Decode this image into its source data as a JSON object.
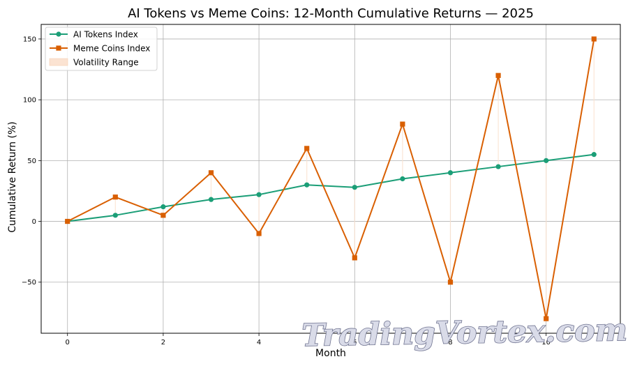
{
  "chart_data": {
    "type": "line",
    "title": "AI Tokens vs Meme Coins: 12-Month Cumulative Returns — 2025",
    "xlabel": "Month",
    "ylabel": "Cumulative Return (%)",
    "x": [
      0,
      1,
      2,
      3,
      4,
      5,
      6,
      7,
      8,
      9,
      10,
      11
    ],
    "xlim": [
      -0.55,
      11.55
    ],
    "ylim": [
      -92,
      162
    ],
    "xticks": [
      0,
      2,
      4,
      6,
      8,
      10
    ],
    "yticks": [
      -50,
      0,
      50,
      100,
      150
    ],
    "ytick_labels": [
      "−50",
      "0",
      "50",
      "100",
      "150"
    ],
    "grid": true,
    "legend_position": "upper-left",
    "series": [
      {
        "name": "AI Tokens Index",
        "color": "#1b9e77",
        "marker": "circle",
        "values": [
          0,
          5,
          12,
          18,
          22,
          30,
          28,
          35,
          40,
          45,
          50,
          55
        ]
      },
      {
        "name": "Meme Coins Index",
        "color": "#d95f02",
        "marker": "square",
        "values": [
          0,
          20,
          5,
          40,
          -10,
          60,
          -30,
          80,
          -50,
          120,
          -80,
          150
        ]
      }
    ],
    "volatility_range": {
      "name": "Volatility Range",
      "color": "#fbe3d2"
    }
  },
  "watermark": "TradingVortex.com"
}
